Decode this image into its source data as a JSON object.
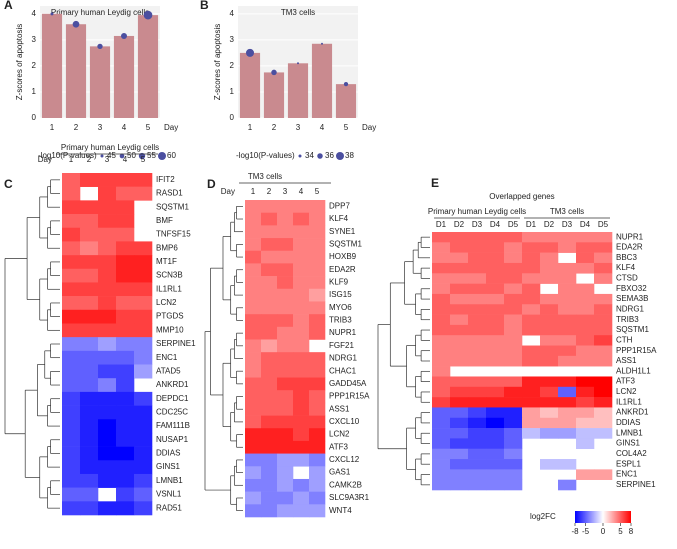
{
  "chart_data": [
    {
      "type": "bar",
      "panel_label": "A",
      "title": "Primary human Leydig cells",
      "y_label": "Z-scores of apoptosis",
      "x_label": "Day",
      "categories": [
        "1",
        "2",
        "3",
        "4",
        "5"
      ],
      "values": [
        4.0,
        3.6,
        2.75,
        3.15,
        3.95
      ],
      "sizes": [
        45,
        56,
        52,
        54,
        62
      ],
      "color": "#c98a8f",
      "dot_color": "#4b4fa0",
      "ylim": [
        0,
        4.3
      ],
      "yticks": [
        0,
        1,
        2,
        3,
        4
      ],
      "legend_title": "-log10(P-values)",
      "size_legend": [
        45,
        50,
        55,
        60
      ]
    },
    {
      "type": "bar",
      "panel_label": "B",
      "title": "TM3 cells",
      "y_label": "Z-scores of apoptosis",
      "x_label": "Day",
      "categories": [
        "1",
        "2",
        "3",
        "4",
        "5"
      ],
      "values": [
        2.5,
        1.75,
        2.1,
        2.85,
        1.3
      ],
      "sizes": [
        38,
        36,
        33,
        33,
        35
      ],
      "color": "#c98a8f",
      "dot_color": "#4b4fa0",
      "ylim": [
        0,
        4.3
      ],
      "yticks": [
        0,
        1,
        2,
        3,
        4
      ],
      "legend_title": "-log10(P-values)",
      "size_legend": [
        34,
        36,
        38
      ]
    },
    {
      "type": "heatmap",
      "panel_label": "C",
      "title": "Primary human Leydig cells",
      "x_label": "Day",
      "columns": [
        "1",
        "2",
        "3",
        "4",
        "5"
      ],
      "rows": [
        "IFIT2",
        "RASD1",
        "SQSTM1",
        "BMF",
        "TNFSF15",
        "BMP6",
        "MT1F",
        "SCN3B",
        "IL1RL1",
        "LCN2",
        "PTGDS",
        "MMP10",
        "SERPINE1",
        "ENC1",
        "ATAD5",
        "ANKRD1",
        "DEPDC1",
        "CDC25C",
        "FAM111B",
        "NUSAP1",
        "DDIAS",
        "GINS1",
        "LMNB1",
        "VSNL1",
        "RAD51"
      ],
      "values": [
        [
          5,
          6,
          6,
          6,
          6
        ],
        [
          5,
          null,
          6,
          5,
          5
        ],
        [
          6,
          6,
          6,
          6,
          null
        ],
        [
          5,
          5,
          6,
          6,
          null
        ],
        [
          6,
          5,
          5,
          5,
          null
        ],
        [
          5,
          4,
          5,
          6,
          6
        ],
        [
          6,
          6,
          6,
          7,
          7
        ],
        [
          5,
          5,
          6,
          7,
          7
        ],
        [
          6,
          6,
          6,
          6,
          6
        ],
        [
          5,
          5,
          6,
          5,
          5
        ],
        [
          7,
          7,
          7,
          6,
          6
        ],
        [
          6,
          6,
          6,
          6,
          6
        ],
        [
          -4,
          -4,
          -3,
          -4,
          -4
        ],
        [
          -5,
          -5,
          -5,
          -5,
          -4
        ],
        [
          -5,
          -5,
          -6,
          -6,
          -3
        ],
        [
          -5,
          -5,
          -4,
          -6,
          null
        ],
        [
          -6,
          -7,
          -7,
          -7,
          -6
        ],
        [
          -6,
          -7,
          -7,
          -7,
          -7
        ],
        [
          -6,
          -7,
          -8,
          -7,
          -7
        ],
        [
          -6,
          -7,
          -8,
          -7,
          -7
        ],
        [
          -6,
          -7,
          -8,
          -8,
          -7
        ],
        [
          -6,
          -7,
          -7,
          -7,
          -7
        ],
        [
          -6,
          -6,
          -7,
          -7,
          -6
        ],
        [
          -5,
          -5,
          null,
          -6,
          -5
        ],
        [
          -6,
          -6,
          -7,
          -7,
          -6
        ]
      ]
    },
    {
      "type": "heatmap",
      "panel_label": "D",
      "title": "TM3 cells",
      "x_label": "Day",
      "columns": [
        "1",
        "2",
        "3",
        "4",
        "5"
      ],
      "rows": [
        "DPP7",
        "KLF4",
        "SYNE1",
        "SQSTM1",
        "HOXB9",
        "EDA2R",
        "KLF9",
        "ISG15",
        "MYO6",
        "TRIB3",
        "NUPR1",
        "FGF21",
        "NDRG1",
        "CHAC1",
        "GADD45A",
        "PPP1R15A",
        "ASS1",
        "CXCL10",
        "LCN2",
        "ATF3",
        "CXCL12",
        "GAS1",
        "CAMK2B",
        "SLC9A3R1",
        "WNT4"
      ],
      "values": [
        [
          4,
          4,
          4,
          4,
          4
        ],
        [
          4,
          5,
          4,
          5,
          4
        ],
        [
          4,
          4,
          4,
          4,
          4
        ],
        [
          4,
          5,
          5,
          4,
          4
        ],
        [
          5,
          4,
          4,
          4,
          4
        ],
        [
          4,
          5,
          5,
          4,
          4
        ],
        [
          4,
          4,
          5,
          4,
          4
        ],
        [
          4,
          4,
          4,
          4,
          3
        ],
        [
          4,
          4,
          4,
          4,
          4
        ],
        [
          5,
          5,
          5,
          4,
          5
        ],
        [
          5,
          5,
          4,
          4,
          5
        ],
        [
          4,
          3,
          4,
          4,
          null
        ],
        [
          4,
          5,
          5,
          5,
          5
        ],
        [
          4,
          5,
          5,
          5,
          5
        ],
        [
          5,
          5,
          6,
          6,
          6
        ],
        [
          5,
          5,
          5,
          6,
          5
        ],
        [
          5,
          5,
          5,
          6,
          5
        ],
        [
          5,
          6,
          6,
          6,
          6
        ],
        [
          7,
          7,
          7,
          6,
          7
        ],
        [
          7,
          7,
          7,
          7,
          7
        ],
        [
          -4,
          -4,
          -3,
          -3,
          -4
        ],
        [
          -3,
          -4,
          -3,
          null,
          -3
        ],
        [
          -4,
          -4,
          -3,
          -4,
          -3
        ],
        [
          -3,
          -4,
          -4,
          -3,
          -4
        ],
        [
          -4,
          -4,
          -3,
          -3,
          -3
        ]
      ]
    },
    {
      "type": "heatmap",
      "panel_label": "E",
      "title": "Overlapped genes",
      "groups": [
        "Primary human Leydig cells",
        "TM3 cells"
      ],
      "columns": [
        "D1",
        "D2",
        "D3",
        "D4",
        "D5",
        "D1",
        "D2",
        "D3",
        "D4",
        "D5"
      ],
      "rows": [
        "NUPR1",
        "EDA2R",
        "BBC3",
        "KLF4",
        "CTSD",
        "FBXO32",
        "SEMA3B",
        "NDRG1",
        "TRIB3",
        "SQSTM1",
        "CTH",
        "PPP1R15A",
        "ASS1",
        "ALDH1L1",
        "ATF3",
        "LCN2",
        "IL1RL1",
        "ANKRD1",
        "DDIAS",
        "LMNB1",
        "GINS1",
        "COL4A2",
        "ESPL1",
        "ENC1",
        "SERPINE1"
      ],
      "values": [
        [
          5,
          5,
          5,
          5,
          5,
          4,
          4,
          4,
          4,
          4
        ],
        [
          4,
          5,
          5,
          5,
          4,
          5,
          5,
          4,
          5,
          5
        ],
        [
          4,
          4,
          5,
          5,
          4,
          5,
          4,
          null,
          5,
          4
        ],
        [
          5,
          5,
          5,
          5,
          5,
          5,
          4,
          4,
          4,
          5
        ],
        [
          4,
          4,
          4,
          5,
          5,
          4,
          4,
          4,
          null,
          4
        ],
        [
          4,
          5,
          5,
          5,
          4,
          5,
          null,
          4,
          4,
          null
        ],
        [
          5,
          4,
          4,
          4,
          5,
          5,
          4,
          4,
          4,
          4
        ],
        [
          5,
          5,
          5,
          5,
          5,
          4,
          5,
          4,
          4,
          5
        ],
        [
          5,
          4,
          5,
          5,
          4,
          5,
          5,
          5,
          5,
          5
        ],
        [
          5,
          5,
          5,
          5,
          4,
          5,
          5,
          5,
          5,
          5
        ],
        [
          4,
          4,
          4,
          4,
          4,
          null,
          4,
          4,
          5,
          6
        ],
        [
          4,
          4,
          4,
          4,
          4,
          5,
          5,
          5,
          4,
          4
        ],
        [
          4,
          4,
          4,
          4,
          4,
          5,
          5,
          4,
          4,
          4
        ],
        [
          4,
          null,
          null,
          null,
          null,
          null,
          null,
          null,
          null,
          null
        ],
        [
          5,
          5,
          5,
          5,
          5,
          7,
          7,
          7,
          8,
          8
        ],
        [
          5,
          6,
          6,
          6,
          7,
          7,
          6,
          -5,
          7,
          8
        ],
        [
          6,
          7,
          7,
          7,
          7,
          7,
          7,
          7,
          6,
          7
        ],
        [
          -5,
          -5,
          -6,
          -7,
          -7,
          3,
          2,
          3,
          3,
          2
        ],
        [
          -5,
          -6,
          -7,
          -8,
          -7,
          3,
          3,
          3,
          2,
          2
        ],
        [
          -5,
          -5,
          -6,
          -6,
          -5,
          -2,
          -3,
          -3,
          -2,
          -2
        ],
        [
          -5,
          -6,
          -6,
          -6,
          -5,
          null,
          null,
          null,
          -2,
          null
        ],
        [
          -4,
          -4,
          -5,
          -5,
          -4,
          null,
          null,
          null,
          null,
          null
        ],
        [
          -4,
          -5,
          -5,
          -5,
          -5,
          null,
          -2,
          -2,
          null,
          null
        ],
        [
          -4,
          -4,
          -4,
          -4,
          -4,
          null,
          null,
          null,
          3,
          3
        ],
        [
          -4,
          -4,
          -4,
          -4,
          -4,
          null,
          null,
          -4,
          null,
          null
        ]
      ],
      "colorbar": {
        "title": "log2FC",
        "lim": [
          -8,
          8
        ],
        "ticks": [
          -8,
          -5,
          0,
          5,
          8
        ],
        "low": "#0000ff",
        "mid": "#ffffff",
        "high": "#ff0000"
      }
    }
  ]
}
